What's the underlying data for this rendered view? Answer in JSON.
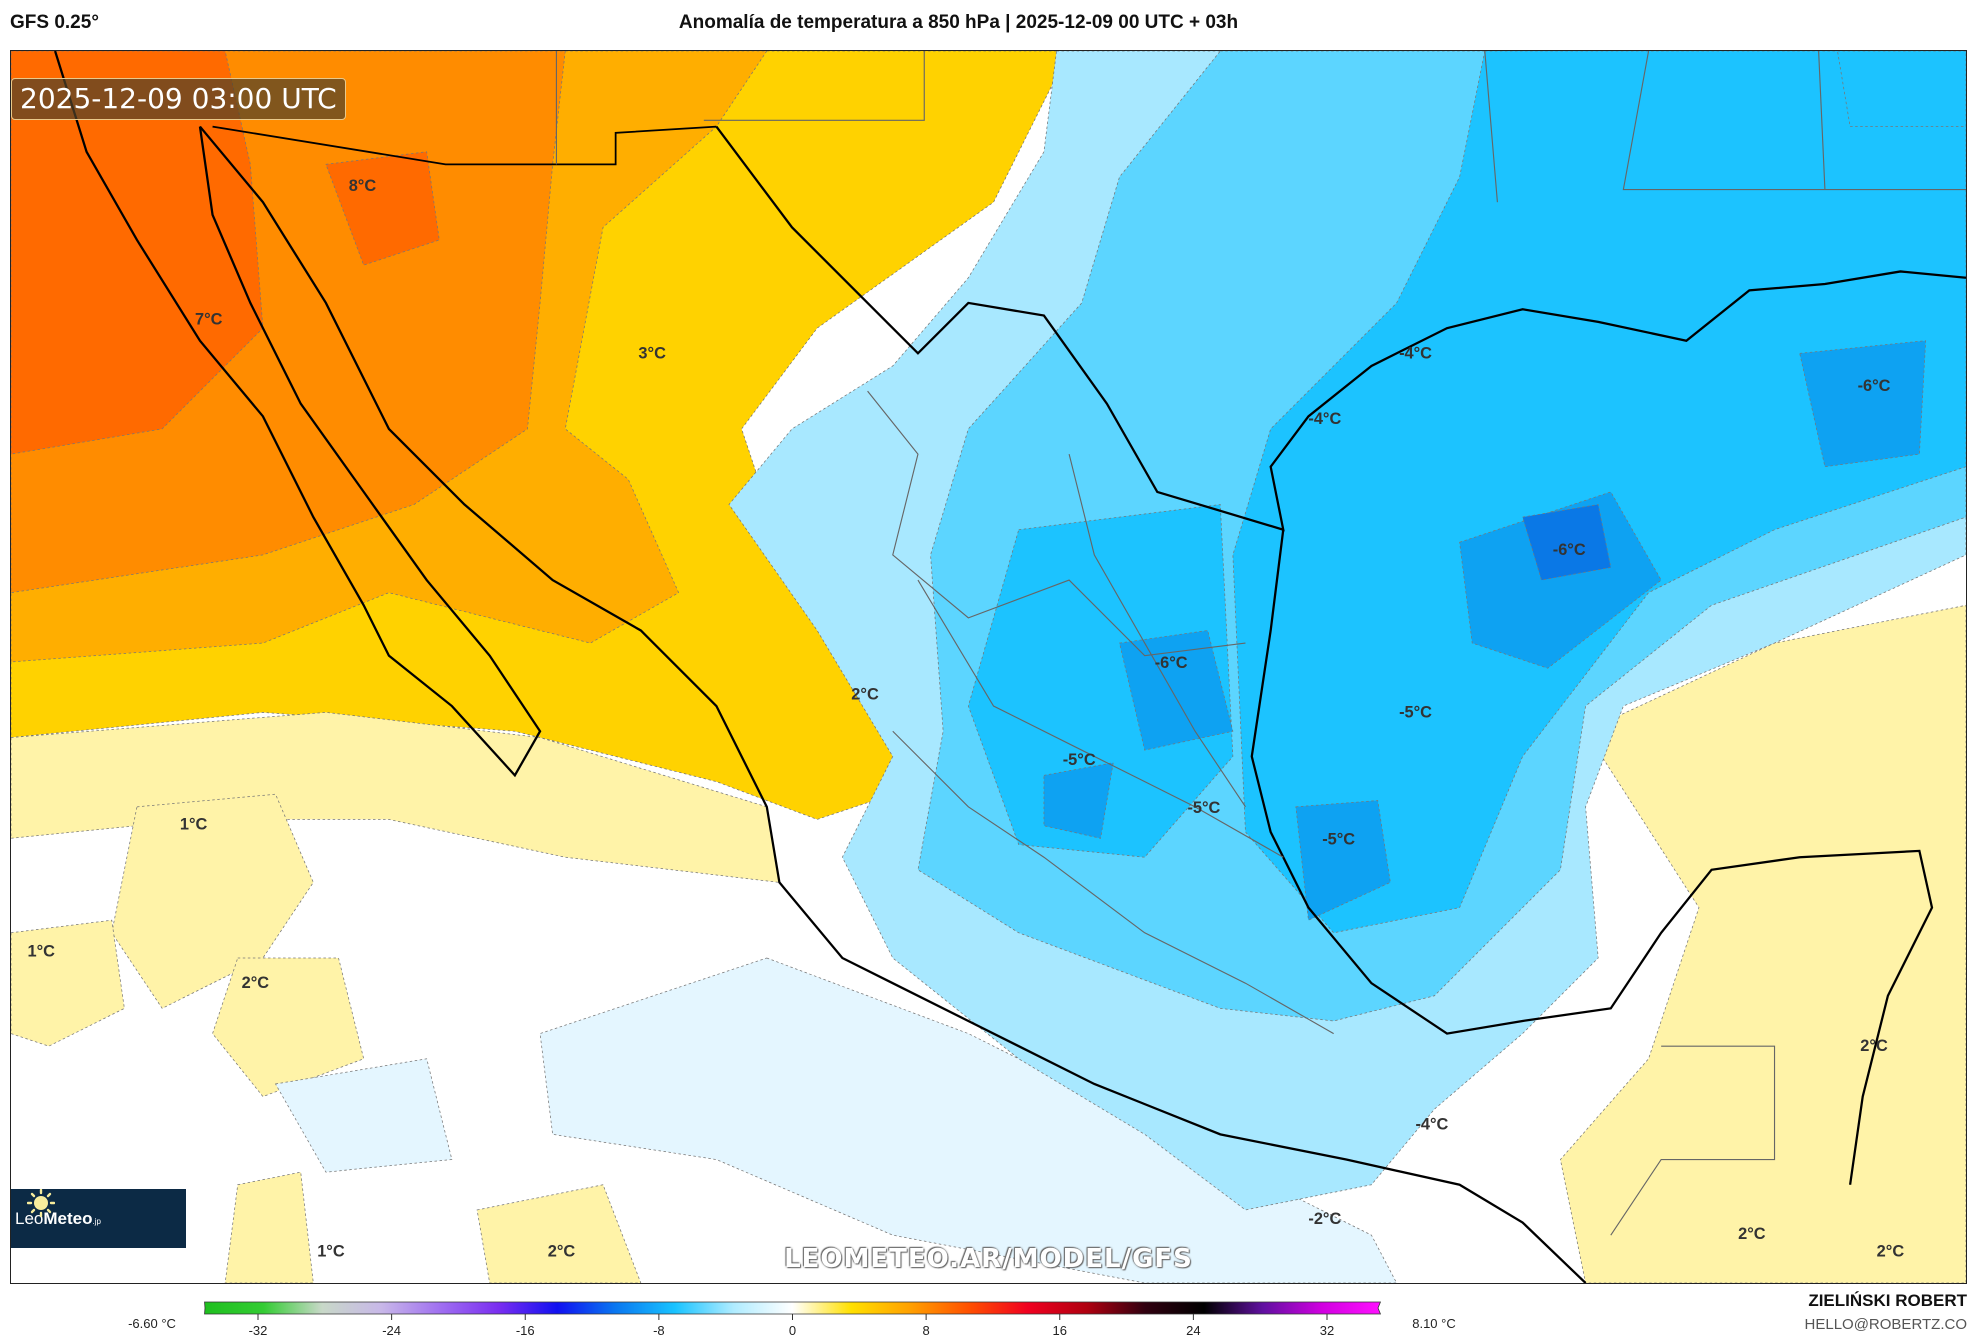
{
  "header": {
    "model": "GFS 0.25°",
    "title": "Anomalía de temperatura a 850 hPa | 2025-12-09 00 UTC + 03h"
  },
  "map": {
    "valid_time": "2025-12-09 03:00 UTC",
    "watermark": "LEOMETEO.AR/MODEL/GFS",
    "labels": [
      "8°C",
      "7°C",
      "3°C",
      "-4°C",
      "-4°C",
      "-6°C",
      "-6°C",
      "-6°C",
      "2°C",
      "-5°C",
      "-5°C",
      "-5°C",
      "-5°C",
      "1°C",
      "1°C",
      "2°C",
      "2°C",
      "-4°C",
      "-2°C",
      "1°C",
      "2°C",
      "2°C",
      "2°C"
    ],
    "colors": {
      "dark_orange": "#ff6a00",
      "orange": "#ff8c00",
      "light_orange": "#ffae00",
      "yellow": "#ffd200",
      "pale_yellow": "#fff3a8",
      "very_light_blue": "#e4f6ff",
      "light_blue": "#a8e8ff",
      "mid_blue": "#5cd5ff",
      "cyan_blue": "#1cc3ff",
      "blue": "#0ea2f2",
      "deep_blue": "#0a78e6"
    }
  },
  "logo": {
    "brand_light": "Leo",
    "brand_bold": "Meteo",
    "suffix": ".jp"
  },
  "colorbar": {
    "min_label": "-6.60 °C",
    "max_label": "8.10 °C",
    "ticks": [
      "-32",
      "-24",
      "-16",
      "-8",
      "0",
      "8",
      "16",
      "24",
      "32"
    ],
    "tick_values": [
      -32,
      -24,
      -16,
      -8,
      0,
      8,
      16,
      24,
      32
    ],
    "range": [
      -36,
      36
    ],
    "stops": [
      "#1fbf1f",
      "#33cc33",
      "#c8d8c8",
      "#c8b8e8",
      "#a070f0",
      "#7a2ef0",
      "#1010f0",
      "#0a78f0",
      "#19c3ff",
      "#b0ecff",
      "#ffffff",
      "#ffe000",
      "#ffa000",
      "#ff5000",
      "#f00020",
      "#b00010",
      "#300010",
      "#000000",
      "#6010a0",
      "#d000e0",
      "#ff10ff"
    ]
  },
  "footer": {
    "author": "ZIELIŃSKI ROBERT",
    "email": "HELLO@ROBERTZ.CO"
  }
}
